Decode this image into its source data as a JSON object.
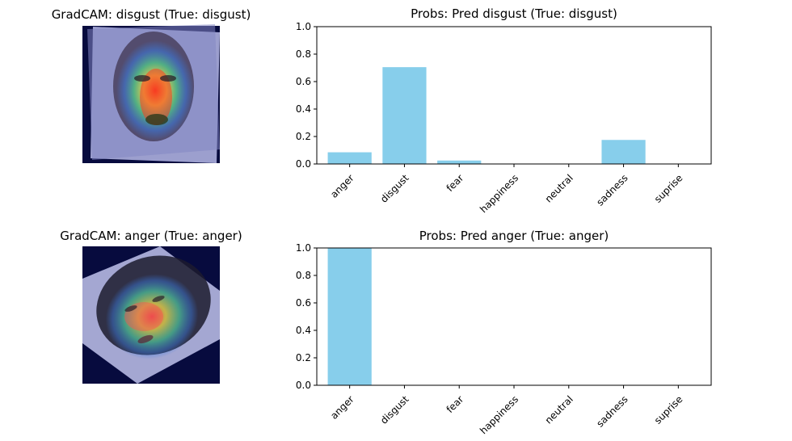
{
  "panels": [
    {
      "image_title": "GradCAM: disgust (True: disgust)",
      "image_alt": "face with GradCAM heatmap",
      "chart_data": {
        "type": "bar",
        "title": "Probs: Pred disgust (True: disgust)",
        "xlabel": "",
        "ylabel": "",
        "categories": [
          "anger",
          "disgust",
          "fear",
          "happiness",
          "neutral",
          "sadness",
          "suprise"
        ],
        "values": [
          0.085,
          0.705,
          0.025,
          0.0,
          0.0,
          0.175,
          0.0
        ],
        "ylim": [
          0,
          1.0
        ],
        "yticks": [
          "0.0",
          "0.2",
          "0.4",
          "0.6",
          "0.8",
          "1.0"
        ],
        "bar_color": "#87ceeb",
        "grid": false,
        "legend": false
      }
    },
    {
      "image_title": "GradCAM: anger (True: anger)",
      "image_alt": "face with GradCAM heatmap",
      "chart_data": {
        "type": "bar",
        "title": "Probs: Pred anger (True: anger)",
        "xlabel": "",
        "ylabel": "",
        "categories": [
          "anger",
          "disgust",
          "fear",
          "happiness",
          "neutral",
          "sadness",
          "suprise"
        ],
        "values": [
          1.0,
          0.0,
          0.0,
          0.0,
          0.0,
          0.0,
          0.0
        ],
        "ylim": [
          0,
          1.0
        ],
        "yticks": [
          "0.0",
          "0.2",
          "0.4",
          "0.6",
          "0.8",
          "1.0"
        ],
        "bar_color": "#87ceeb",
        "grid": false,
        "legend": false
      }
    }
  ]
}
